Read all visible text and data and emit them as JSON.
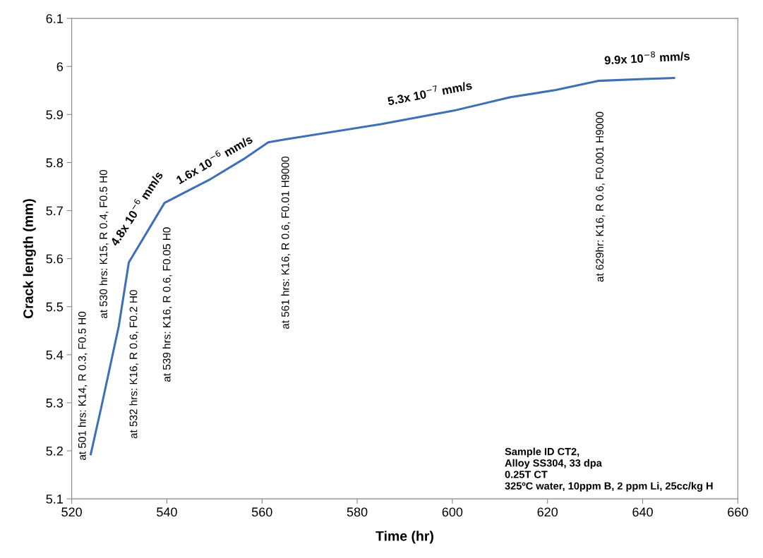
{
  "chart_data": {
    "type": "line",
    "xlabel": "Time (hr)",
    "ylabel": "Crack length (mm)",
    "x": [
      524.0,
      526.2,
      529.9,
      532.0,
      539.5,
      548.9,
      556.1,
      561.3,
      564.7,
      585.0,
      600.3,
      612.2,
      621.8,
      630.6,
      640.3,
      646.6
    ],
    "series": [
      {
        "color": "#3f6fb5",
        "values": [
          5.193,
          5.29,
          5.46,
          5.592,
          5.716,
          5.764,
          5.807,
          5.842,
          5.848,
          5.88,
          5.908,
          5.936,
          5.951,
          5.97,
          5.974,
          5.976
        ]
      }
    ],
    "xlim": [
      520,
      660
    ],
    "xticks": [
      520,
      540,
      560,
      580,
      600,
      620,
      640,
      660
    ],
    "ylim": [
      5.1,
      6.1
    ],
    "yticks": [
      5.1,
      5.2,
      5.3,
      5.4,
      5.5,
      5.6,
      5.7,
      5.8,
      5.9,
      6,
      6.1
    ],
    "grid": false,
    "legend": false,
    "marker": "none",
    "line_style": "solid",
    "annotations": [
      "at 501 hrs: K14, R 0.3, F0.5 H0",
      "at 530 hrs: K15, R 0.4, F0.5 H0",
      "at 532 hrs: K16, R 0.6, F0.2 H0",
      "at 539 hrs: K16, R 0.6, F0.05 H0",
      "at 561 hrs: K16, R 0.6, F0.01 H9000",
      "at 629hr: K16, R 0.6, F0.001 H9000",
      "4.8x 10$^{−6}$ mm/s",
      "1.6x 10$^{−6}$ mm/s",
      "5.3x 10$^{−7}$ mm/s",
      "9.9x 10$^{−8}$ mm/s",
      "Sample ID CT2,\nAlloy SS304, 33 dpa\n0.25T CT\n325ºC water, 10ppm B, 2 ppm Li, 25cc/kg H"
    ]
  }
}
